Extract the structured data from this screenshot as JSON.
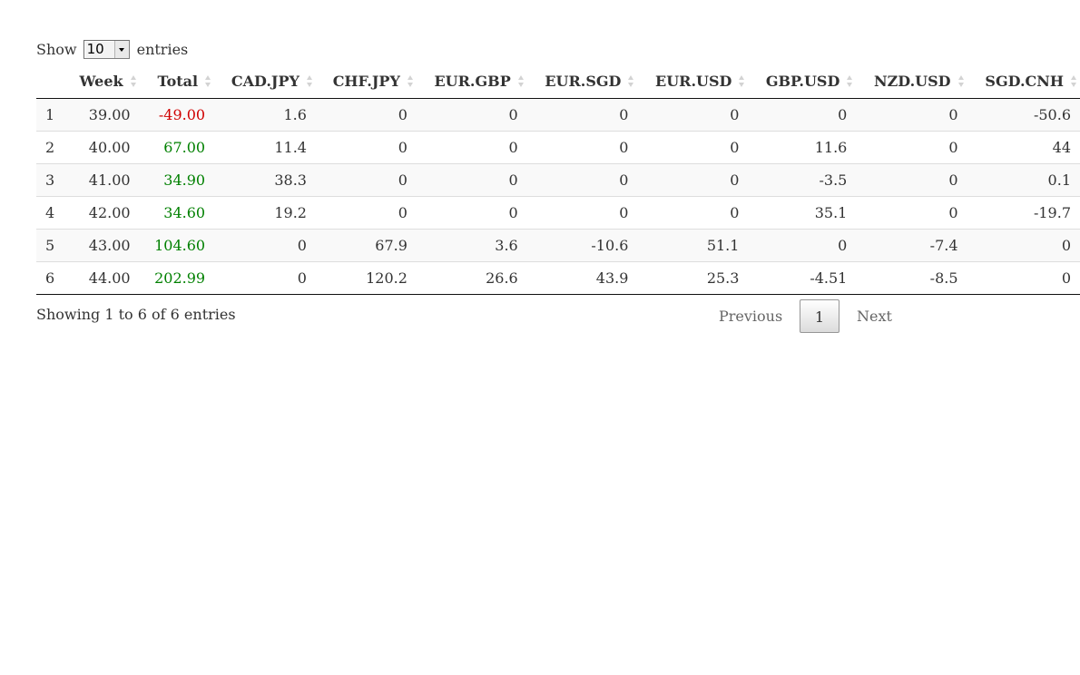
{
  "length_menu": {
    "show_label": "Show",
    "selected": "10",
    "entries_label": "entries"
  },
  "columns": [
    "",
    "Week",
    "Total",
    "CAD.JPY",
    "CHF.JPY",
    "EUR.GBP",
    "EUR.SGD",
    "EUR.USD",
    "GBP.USD",
    "NZD.USD",
    "SGD.CNH"
  ],
  "rows": [
    [
      "1",
      "39.00",
      "-49.00",
      "1.6",
      "0",
      "0",
      "0",
      "0",
      "0",
      "0",
      "-50.6"
    ],
    [
      "2",
      "40.00",
      "67.00",
      "11.4",
      "0",
      "0",
      "0",
      "0",
      "11.6",
      "0",
      "44"
    ],
    [
      "3",
      "41.00",
      "34.90",
      "38.3",
      "0",
      "0",
      "0",
      "0",
      "-3.5",
      "0",
      "0.1"
    ],
    [
      "4",
      "42.00",
      "34.60",
      "19.2",
      "0",
      "0",
      "0",
      "0",
      "35.1",
      "0",
      "-19.7"
    ],
    [
      "5",
      "43.00",
      "104.60",
      "0",
      "67.9",
      "3.6",
      "-10.6",
      "51.1",
      "0",
      "-7.4",
      "0"
    ],
    [
      "6",
      "44.00",
      "202.99",
      "0",
      "120.2",
      "26.6",
      "43.9",
      "25.3",
      "-4.51",
      "-8.5",
      "0"
    ]
  ],
  "total_colors": {
    "negative": "#d00000",
    "positive": "#008000"
  },
  "info": "Showing 1 to 6 of 6 entries",
  "pagination": {
    "previous": "Previous",
    "current": "1",
    "next": "Next"
  },
  "icons": {
    "sort": "sort-both-icon",
    "dropdown": "chevron-down-icon"
  }
}
